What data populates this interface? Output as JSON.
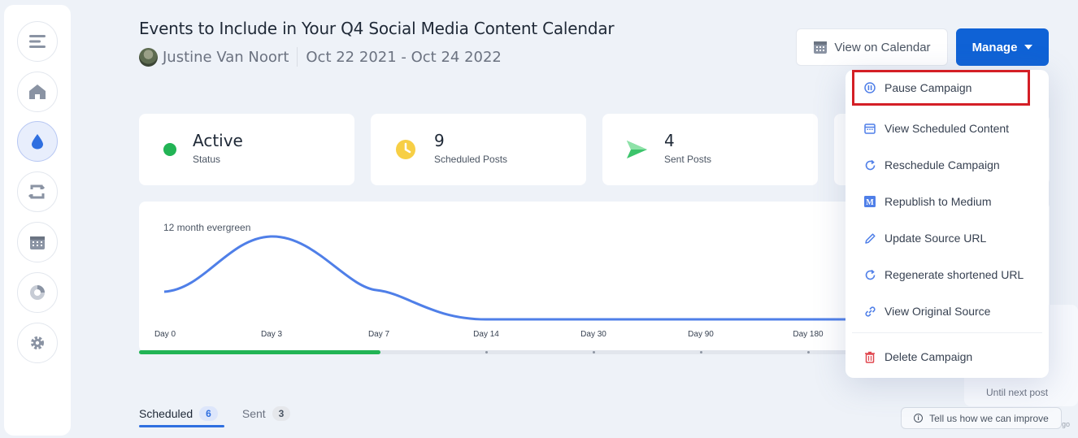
{
  "page": {
    "title": "Events to Include in Your Q4 Social Media Content Calendar",
    "author": "Justine Van Noort",
    "date_range": "Oct 22 2021 - Oct 24 2022"
  },
  "header_buttons": {
    "view_calendar": "View on Calendar",
    "manage": "Manage"
  },
  "sidebar": {
    "items": [
      {
        "name": "menu-icon"
      },
      {
        "name": "home-icon"
      },
      {
        "name": "drop-icon",
        "active": true
      },
      {
        "name": "recycle-icon"
      },
      {
        "name": "calendar-icon"
      },
      {
        "name": "analytics-icon"
      },
      {
        "name": "gear-icon"
      }
    ]
  },
  "stats": [
    {
      "value": "Active",
      "label": "Status",
      "icon": "green-dot-icon",
      "color": "#22b455"
    },
    {
      "value": "9",
      "label": "Scheduled Posts",
      "icon": "clock-icon",
      "color": "#f7cf45"
    },
    {
      "value": "4",
      "label": "Sent Posts",
      "icon": "send-icon",
      "color": "#3cc46b"
    }
  ],
  "chart_data": {
    "type": "line",
    "title": "12 month evergreen",
    "categories": [
      "Day 0",
      "Day 3",
      "Day 7",
      "Day 14",
      "Day 30",
      "Day 90",
      "Day 180"
    ],
    "progress_fraction": 0.338
  },
  "tabs": [
    {
      "label": "Scheduled",
      "count": "6"
    },
    {
      "label": "Sent",
      "count": "3"
    }
  ],
  "countdown": {
    "until_label": "Until next post",
    "cropped_text": "go"
  },
  "feedback": {
    "label": "Tell us how we can improve"
  },
  "manage_menu": {
    "items": [
      {
        "label": "Pause Campaign",
        "icon": "pause-icon"
      },
      {
        "label": "View Scheduled Content",
        "icon": "calendar-icon"
      },
      {
        "label": "Reschedule Campaign",
        "icon": "refresh-icon"
      },
      {
        "label": "Republish to Medium",
        "icon": "medium-icon"
      },
      {
        "label": "Update Source URL",
        "icon": "pencil-icon"
      },
      {
        "label": "Regenerate shortened URL",
        "icon": "refresh-icon"
      },
      {
        "label": "View Original Source",
        "icon": "link-icon"
      },
      {
        "label": "Delete Campaign",
        "icon": "trash-icon"
      }
    ]
  }
}
